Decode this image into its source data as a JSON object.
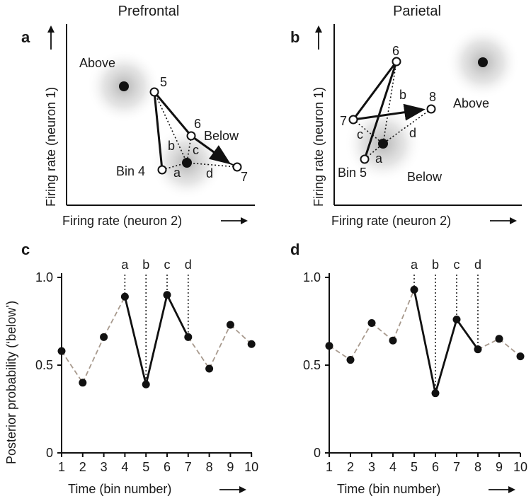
{
  "titles": {
    "left": "Prefrontal",
    "right": "Parietal"
  },
  "panels": {
    "a": "a",
    "b": "b",
    "c": "c",
    "d": "d"
  },
  "scatter_axes": {
    "y_label": "Firing rate (neuron 1)",
    "x_label": "Firing rate (neuron 2)"
  },
  "scatter": {
    "a": {
      "above_label": "Above",
      "below_label": "Below",
      "bin_start_label": "Bin 4",
      "bins": [
        "5",
        "6",
        "7"
      ],
      "segment_labels": [
        "a",
        "b",
        "c",
        "d"
      ]
    },
    "b": {
      "above_label": "Above",
      "below_label": "Below",
      "bin_start_label": "Bin 5",
      "bins": [
        "6",
        "7",
        "8"
      ],
      "segment_labels": [
        "a",
        "b",
        "c",
        "d"
      ]
    }
  },
  "chart_data": [
    {
      "type": "line",
      "panel": "c",
      "ylabel": "Posterior probability (‘below’)",
      "xlabel": "Time (bin number)",
      "x": [
        1,
        2,
        3,
        4,
        5,
        6,
        7,
        8,
        9,
        10
      ],
      "values": [
        0.58,
        0.4,
        0.66,
        0.89,
        0.39,
        0.9,
        0.66,
        0.48,
        0.73,
        0.62
      ],
      "highlight_range": [
        4,
        7
      ],
      "markers": [
        {
          "x": 4,
          "label": "a"
        },
        {
          "x": 5,
          "label": "b"
        },
        {
          "x": 6,
          "label": "c"
        },
        {
          "x": 7,
          "label": "d"
        }
      ],
      "ylim": [
        0,
        1.0
      ],
      "yticks": [
        "0",
        "0.5",
        "1.0"
      ],
      "xticks": [
        "1",
        "2",
        "3",
        "4",
        "5",
        "6",
        "7",
        "8",
        "9",
        "10"
      ]
    },
    {
      "type": "line",
      "panel": "d",
      "ylabel": "",
      "xlabel": "Time (bin number)",
      "x": [
        1,
        2,
        3,
        4,
        5,
        6,
        7,
        8,
        9,
        10
      ],
      "values": [
        0.61,
        0.53,
        0.74,
        0.64,
        0.93,
        0.34,
        0.76,
        0.59,
        0.65,
        0.55
      ],
      "highlight_range": [
        5,
        8
      ],
      "markers": [
        {
          "x": 5,
          "label": "a"
        },
        {
          "x": 6,
          "label": "b"
        },
        {
          "x": 7,
          "label": "c"
        },
        {
          "x": 8,
          "label": "d"
        }
      ],
      "ylim": [
        0,
        1.0
      ],
      "yticks": [
        "0",
        "0.5",
        "1.0"
      ],
      "xticks": [
        "1",
        "2",
        "3",
        "4",
        "5",
        "6",
        "7",
        "8",
        "9",
        "10"
      ]
    }
  ],
  "colors": {
    "ink": "#111111",
    "dashed": "#a89a8e",
    "blob": "#9a9a9a"
  }
}
